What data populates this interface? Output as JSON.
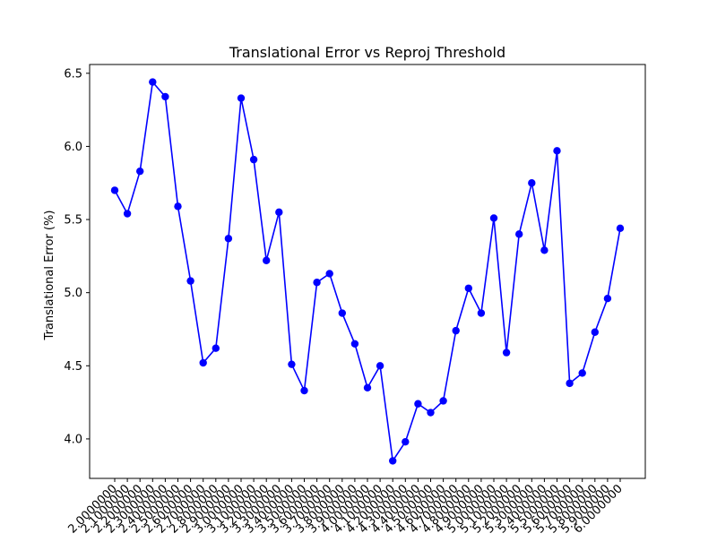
{
  "chart_data": {
    "type": "line",
    "title": "Translational Error vs Reproj Threshold",
    "xlabel": "",
    "ylabel": "Translational Error (%)",
    "ylim": [
      3.73,
      6.56
    ],
    "yticks": [
      "4.0",
      "4.5",
      "5.0",
      "5.5",
      "6.0",
      "6.5"
    ],
    "ytick_values": [
      4.0,
      4.5,
      5.0,
      5.5,
      6.0,
      6.5
    ],
    "grid": false,
    "legend": "none",
    "categories": [
      "2.0000000",
      "2.1000000",
      "2.2000000",
      "2.3000000",
      "2.4000000",
      "2.5000000",
      "2.6000000",
      "2.7000000",
      "2.8000000",
      "2.9000000",
      "3.0000000",
      "3.1000000",
      "3.2000000",
      "3.3000000",
      "3.4000000",
      "3.5000000",
      "3.6000000",
      "3.7000000",
      "3.8000000",
      "3.9000000",
      "4.0000000",
      "4.1000000",
      "4.2000000",
      "4.3000000",
      "4.4000000",
      "4.5000000",
      "4.6000000",
      "4.7000000",
      "4.8000000",
      "4.9000000",
      "5.0000000",
      "5.1000000",
      "5.2000000",
      "5.3000000",
      "5.4000000",
      "5.5000000",
      "5.6000000",
      "5.7000000",
      "5.8000000",
      "5.9000000",
      "6.0000000"
    ],
    "series": [
      {
        "color": "#0000ff",
        "values": [
          5.7,
          5.54,
          5.83,
          6.44,
          6.34,
          5.59,
          5.08,
          4.52,
          4.62,
          5.37,
          6.33,
          5.91,
          5.22,
          5.55,
          4.51,
          4.33,
          5.07,
          5.13,
          4.86,
          4.65,
          4.35,
          4.5,
          3.85,
          3.98,
          4.24,
          4.18,
          4.26,
          4.74,
          5.03,
          4.86,
          5.51,
          4.59,
          5.4,
          5.75,
          5.29,
          5.97,
          4.38,
          4.45,
          4.73,
          4.96,
          5.44
        ]
      }
    ]
  }
}
